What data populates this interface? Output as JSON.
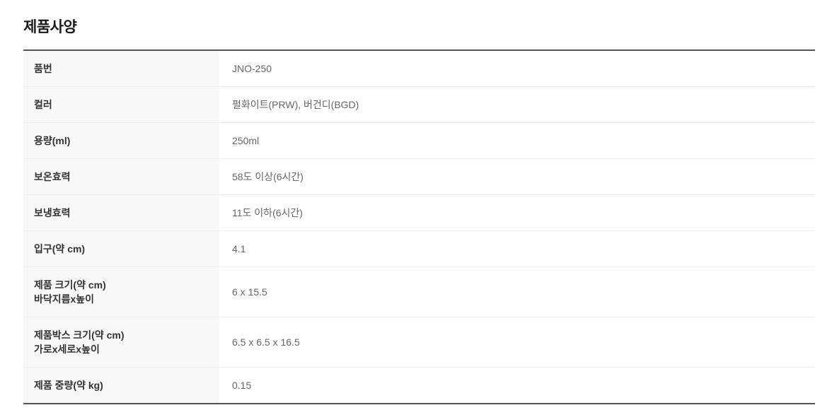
{
  "page": {
    "title": "제품사양"
  },
  "colors": {
    "table_border_dark": "#555555",
    "row_divider": "#ededed",
    "label_column_bg": "#f8f8f8",
    "label_text": "#333333",
    "value_text": "#666666",
    "title_text": "#1a1a1a"
  },
  "table": {
    "rows": [
      {
        "label": "품번",
        "label2": "",
        "value": "JNO-250"
      },
      {
        "label": "컬러",
        "label2": "",
        "value": "펄화이트(PRW), 버건디(BGD)"
      },
      {
        "label": "용량(ml)",
        "label2": "",
        "value": "250ml"
      },
      {
        "label": "보온효력",
        "label2": "",
        "value": "58도 이상(6시간)"
      },
      {
        "label": "보냉효력",
        "label2": "",
        "value": "11도 이하(6시간)"
      },
      {
        "label": "입구(약 cm)",
        "label2": "",
        "value": "4.1"
      },
      {
        "label": "제품 크기(약 cm)",
        "label2": "바닥지름x높이",
        "value": "6 x 15.5"
      },
      {
        "label": "제품박스 크기(약 cm)",
        "label2": "가로x세로x높이",
        "value": "6.5 x 6.5 x 16.5"
      },
      {
        "label": "제품 중량(약 kg)",
        "label2": "",
        "value": "0.15"
      }
    ]
  }
}
